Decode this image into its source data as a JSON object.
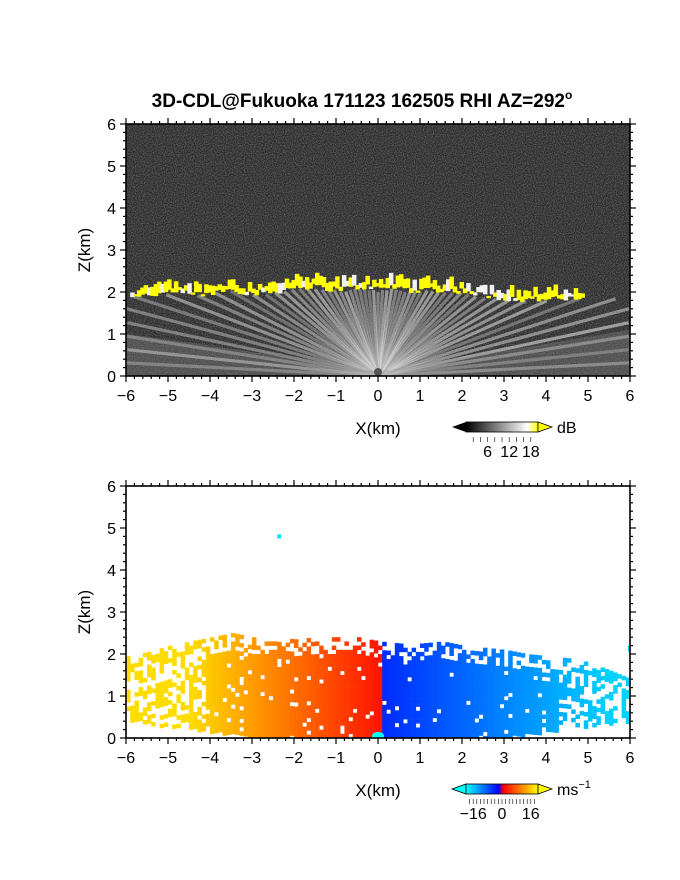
{
  "title": "3D-CDL@Fukuoka 171123 162505 RHI AZ=292",
  "title_superscript": "o",
  "chart_data": [
    {
      "type": "heatmap",
      "name": "snr",
      "xlabel": "X(km)",
      "ylabel": "Z(km)",
      "xlim": [
        -6,
        6
      ],
      "ylim": [
        0,
        6
      ],
      "xticks": [
        "-6",
        "-5",
        "-4",
        "-3",
        "-2",
        "-1",
        "0",
        "1",
        "2",
        "3",
        "4",
        "5",
        "6"
      ],
      "yticks": [
        "0",
        "1",
        "2",
        "3",
        "4",
        "5",
        "6"
      ],
      "colorbar": {
        "unit": "dB",
        "ticks": [
          "6",
          "12",
          "18"
        ],
        "range": [
          0,
          20
        ],
        "colors": [
          "#000000",
          "#ffffff",
          "#ffff00"
        ]
      },
      "cloud_base_profile": {
        "x": [
          -5.9,
          -5.5,
          -5.0,
          -4.6,
          -4.2,
          -3.8,
          -3.5,
          -3.2,
          -2.8,
          -2.4,
          -2.0,
          -1.6,
          -1.2,
          -0.8,
          -0.4,
          0.0,
          0.4,
          0.8,
          1.2,
          1.6,
          2.0,
          2.4,
          2.8,
          3.2,
          3.6,
          4.0,
          4.4,
          4.8
        ],
        "z": [
          1.9,
          1.9,
          1.95,
          1.95,
          1.9,
          2.0,
          2.05,
          1.95,
          1.95,
          2.0,
          2.1,
          2.1,
          2.05,
          2.05,
          2.1,
          2.05,
          2.1,
          2.0,
          2.05,
          2.0,
          2.0,
          1.9,
          1.85,
          1.8,
          1.8,
          1.8,
          1.8,
          1.85
        ]
      }
    },
    {
      "type": "heatmap",
      "name": "doppler_velocity",
      "xlabel": "X(km)",
      "ylabel": "Z(km)",
      "xlim": [
        -6,
        6
      ],
      "ylim": [
        0,
        6
      ],
      "xticks": [
        "-6",
        "-5",
        "-4",
        "-3",
        "-2",
        "-1",
        "0",
        "1",
        "2",
        "3",
        "4",
        "5",
        "6"
      ],
      "yticks": [
        "0",
        "1",
        "2",
        "3",
        "4",
        "5",
        "6"
      ],
      "colorbar": {
        "unit": "ms",
        "unit_exponent": "−1",
        "ticks": [
          "−16",
          "0",
          "16"
        ],
        "range": [
          -20,
          20
        ],
        "colors": [
          "#00ffff",
          "#0000ff",
          "#ff0000",
          "#ffff00"
        ]
      },
      "echo_top_profile": {
        "x": [
          -6.0,
          -5.5,
          -5.0,
          -4.5,
          -4.0,
          -3.5,
          -3.0,
          -2.5,
          -2.0,
          -1.5,
          -1.0,
          -0.5,
          0.0,
          0.5,
          1.0,
          1.5,
          2.0,
          2.5,
          3.0,
          3.5,
          4.0,
          4.5,
          5.0,
          5.5,
          6.0
        ],
        "z": [
          1.95,
          2.05,
          2.2,
          2.3,
          2.4,
          2.5,
          2.4,
          2.4,
          2.35,
          2.4,
          2.4,
          2.4,
          2.3,
          2.25,
          2.25,
          2.3,
          2.2,
          2.15,
          2.1,
          2.0,
          1.95,
          1.9,
          1.8,
          1.6,
          1.4
        ]
      }
    }
  ]
}
